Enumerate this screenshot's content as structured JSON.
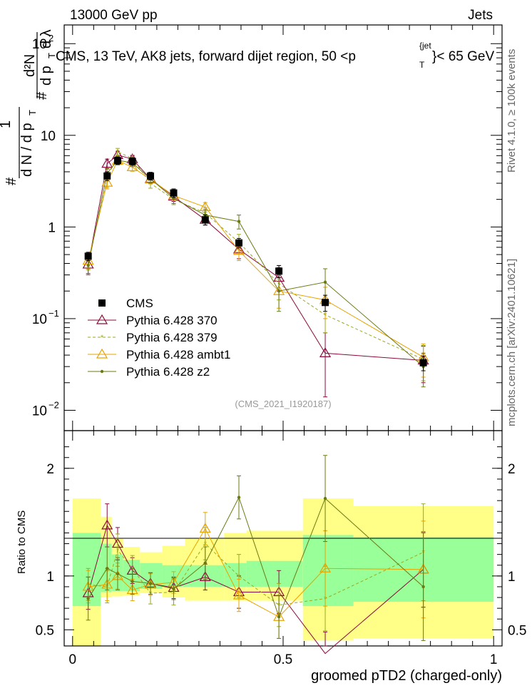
{
  "header": {
    "left": "13000 GeV pp",
    "right": "Jets"
  },
  "side_labels": {
    "rivet": "Rivet 4.1.0, ≥ 100k events",
    "mcplots": "mcplots.cern.ch [arXiv:2401.10621]"
  },
  "colors": {
    "cms": "#000000",
    "p370": "#8b0a3c",
    "p379": "#9aaa1e",
    "ambt1": "#e6a400",
    "z2": "#6b7a12",
    "band_outer": "#ffff88",
    "band_inner": "#99ff99"
  },
  "chart_data": [
    {
      "type": "line",
      "title": "CMS, 13 TeV, AK8 jets, forward dijet region, 50 <p_T^{jet}< 65 GeV",
      "title_parts": {
        "main": "CMS, 13 TeV, AK8 jets, forward dijet region, 50 <p",
        "sub": "T",
        "sup": "{jet",
        "end": "}< 65 GeV"
      },
      "watermark": "(CMS_2021_I1920187)",
      "ylabel": {
        "one": "1",
        "dN": "d N / d p",
        "T": "T",
        "hash": "#",
        "d2N": "d²N",
        "dpT": "d p",
        "T2": "T",
        "dlambda": "d λ",
        "hash2": "#"
      },
      "yscale": "log",
      "ylim": [
        0.006,
        160
      ],
      "xlim": [
        -0.02,
        1.02
      ],
      "yticks": [
        {
          "value": 0.01,
          "base": "10",
          "exp": "−2"
        },
        {
          "value": 0.1,
          "base": "10",
          "exp": "−1"
        },
        {
          "value": 1,
          "base": "1",
          "exp": ""
        },
        {
          "value": 10,
          "base": "10",
          "exp": ""
        },
        {
          "value": 100,
          "base": "10",
          "exp": "2"
        }
      ],
      "x_edges": [
        0.0,
        0.067,
        0.093,
        0.12,
        0.16,
        0.213,
        0.267,
        0.36,
        0.413,
        0.547,
        0.667,
        1.0
      ],
      "legend": {
        "position": "center-left",
        "entries": [
          "CMS",
          "Pythia 6.428 370",
          "Pythia 6.428 379",
          "Pythia 6.428 ambt1",
          "Pythia 6.428 z2"
        ]
      },
      "series": [
        {
          "key": "cms",
          "name": "CMS",
          "x": [
            0.037,
            0.082,
            0.107,
            0.142,
            0.185,
            0.24,
            0.315,
            0.395,
            0.49,
            0.6,
            0.833
          ],
          "y": [
            0.48,
            3.6,
            5.3,
            5.2,
            3.6,
            2.35,
            1.2,
            0.67,
            0.33,
            0.15,
            0.033
          ],
          "err": [
            0.05,
            0.4,
            0.5,
            0.5,
            0.35,
            0.25,
            0.15,
            0.08,
            0.05,
            0.03,
            0.006
          ]
        },
        {
          "key": "p370",
          "name": "Pythia 6.428 370",
          "x": [
            0.037,
            0.082,
            0.107,
            0.142,
            0.185,
            0.24,
            0.315,
            0.395,
            0.49,
            0.6,
            0.833
          ],
          "y": [
            0.39,
            4.9,
            6.1,
            5.5,
            3.35,
            2.15,
            1.2,
            0.57,
            0.28,
            0.042,
            0.035
          ],
          "err": [
            0.08,
            0.6,
            0.6,
            0.5,
            0.35,
            0.25,
            0.15,
            0.12,
            0.08,
            0.028,
            0.015
          ]
        },
        {
          "key": "p379",
          "name": "Pythia 6.428 379",
          "x": [
            0.037,
            0.082,
            0.107,
            0.142,
            0.185,
            0.24,
            0.315,
            0.395,
            0.49,
            0.6,
            0.833
          ],
          "y": [
            0.42,
            3.2,
            6.6,
            5.6,
            3.0,
            2.0,
            1.42,
            0.68,
            0.24,
            0.11,
            0.036
          ],
          "err": [
            0.08,
            0.5,
            0.6,
            0.5,
            0.35,
            0.25,
            0.2,
            0.15,
            0.08,
            0.04,
            0.015
          ]
        },
        {
          "key": "ambt1",
          "name": "Pythia 6.428 ambt1",
          "x": [
            0.037,
            0.082,
            0.107,
            0.142,
            0.185,
            0.24,
            0.315,
            0.395,
            0.49,
            0.6,
            0.833
          ],
          "y": [
            0.43,
            3.05,
            5.3,
            4.5,
            3.3,
            2.2,
            1.65,
            0.55,
            0.2,
            0.16,
            0.038
          ],
          "err": [
            0.08,
            0.45,
            0.55,
            0.45,
            0.35,
            0.25,
            0.2,
            0.12,
            0.07,
            0.06,
            0.015
          ]
        },
        {
          "key": "z2",
          "name": "Pythia 6.428 z2",
          "x": [
            0.037,
            0.082,
            0.107,
            0.142,
            0.185,
            0.24,
            0.315,
            0.395,
            0.49,
            0.6,
            0.833
          ],
          "y": [
            0.38,
            3.85,
            5.35,
            5.0,
            3.35,
            2.05,
            1.35,
            1.15,
            0.2,
            0.25,
            0.03
          ],
          "err": [
            0.08,
            0.5,
            0.55,
            0.45,
            0.35,
            0.25,
            0.2,
            0.2,
            0.08,
            0.1,
            0.012
          ]
        }
      ]
    },
    {
      "type": "line",
      "ylabel": "Ratio to CMS",
      "xlabel": "groomed pTD2 (charged-only)",
      "ylim": [
        0.35,
        2.35
      ],
      "xlim": [
        -0.02,
        1.02
      ],
      "xticks": [
        0,
        0.5,
        1
      ],
      "xtick_labels": [
        "0",
        "0.5",
        "1"
      ],
      "yticks": [
        0.5,
        1,
        2
      ],
      "ytick_labels": [
        "0.5",
        "1",
        "2"
      ],
      "bands": {
        "x_edges": [
          0.0,
          0.067,
          0.093,
          0.12,
          0.16,
          0.213,
          0.267,
          0.36,
          0.413,
          0.547,
          0.667,
          1.0
        ],
        "inner_lo": [
          0.72,
          0.85,
          0.86,
          0.86,
          0.88,
          0.9,
          0.9,
          0.9,
          0.9,
          0.72,
          0.76
        ],
        "inner_hi": [
          1.4,
          1.3,
          1.2,
          1.15,
          1.12,
          1.1,
          1.1,
          1.12,
          1.14,
          1.38,
          1.36
        ],
        "outer_lo": [
          0.35,
          0.8,
          0.81,
          0.82,
          0.84,
          0.8,
          0.77,
          0.77,
          0.77,
          0.4,
          0.42
        ],
        "outer_hi": [
          1.72,
          1.55,
          1.35,
          1.27,
          1.22,
          1.28,
          1.35,
          1.4,
          1.42,
          1.72,
          1.65
        ]
      },
      "series": [
        {
          "key": "p370",
          "name": "Pythia 6.428 370",
          "x": [
            0.037,
            0.082,
            0.107,
            0.142,
            0.185,
            0.24,
            0.315,
            0.395,
            0.49,
            0.6,
            0.833
          ],
          "y": [
            0.84,
            1.47,
            1.3,
            1.05,
            0.93,
            0.89,
            0.99,
            0.85,
            0.85,
            0.28,
            1.06
          ],
          "err": [
            0.15,
            0.2,
            0.15,
            0.12,
            0.1,
            0.1,
            0.12,
            0.15,
            0.2,
            0.2,
            0.35
          ]
        },
        {
          "key": "p379",
          "name": "Pythia 6.428 379",
          "x": [
            0.037,
            0.082,
            0.107,
            0.142,
            0.185,
            0.24,
            0.315,
            0.395,
            0.49,
            0.6,
            0.833
          ],
          "y": [
            0.92,
            0.9,
            1.24,
            1.07,
            0.84,
            0.85,
            1.3,
            1.0,
            0.73,
            0.79,
            1.22
          ],
          "err": [
            0.15,
            0.15,
            0.15,
            0.12,
            0.1,
            0.12,
            0.15,
            0.2,
            0.2,
            0.3,
            0.45
          ]
        },
        {
          "key": "ambt1",
          "name": "Pythia 6.428 ambt1",
          "x": [
            0.037,
            0.082,
            0.107,
            0.142,
            0.185,
            0.24,
            0.315,
            0.395,
            0.49,
            0.6,
            0.833
          ],
          "y": [
            0.9,
            0.92,
            1.0,
            0.87,
            0.92,
            0.94,
            1.44,
            0.82,
            0.62,
            1.07,
            1.06
          ],
          "err": [
            0.15,
            0.15,
            0.12,
            0.1,
            0.1,
            0.1,
            0.15,
            0.15,
            0.2,
            0.35,
            0.45
          ]
        },
        {
          "key": "z2",
          "name": "Pythia 6.428 z2",
          "x": [
            0.037,
            0.082,
            0.107,
            0.142,
            0.185,
            0.24,
            0.315,
            0.395,
            0.49,
            0.6,
            0.833
          ],
          "y": [
            0.79,
            1.07,
            1.02,
            0.95,
            0.93,
            0.88,
            1.12,
            1.73,
            0.62,
            1.72,
            0.9
          ],
          "err": [
            0.2,
            0.2,
            0.15,
            0.12,
            0.1,
            0.1,
            0.15,
            0.2,
            0.2,
            0.4,
            0.5
          ]
        }
      ]
    }
  ]
}
